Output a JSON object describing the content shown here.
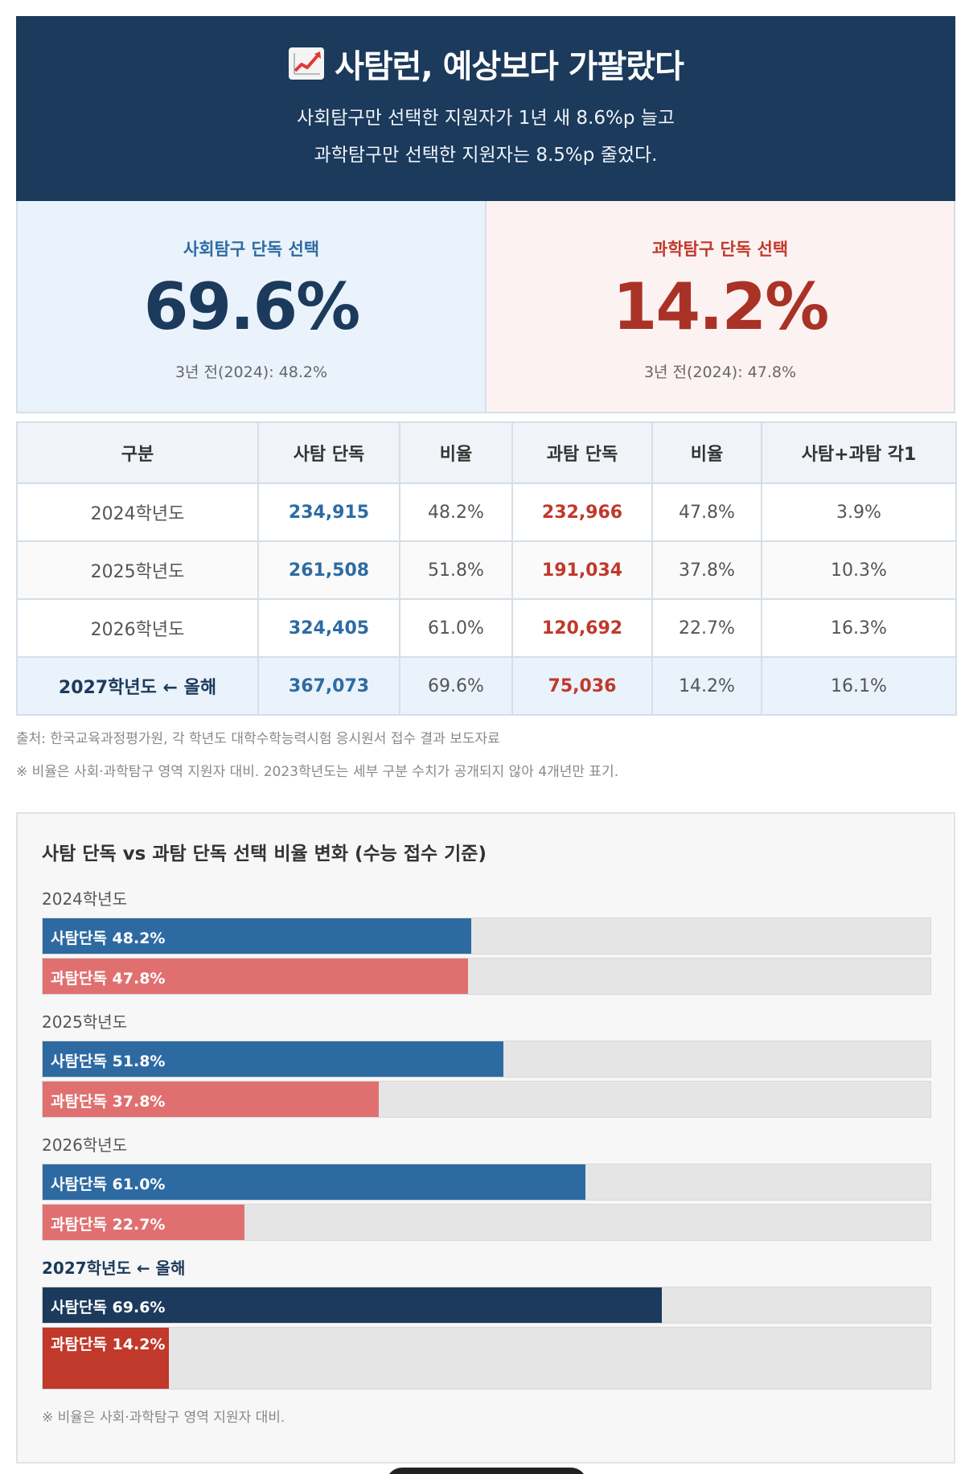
{
  "header": {
    "title": "사탐런, 예상보다 가팔랐다",
    "subtitle_line1": "사회탐구만 선택한 지원자가 1년 새 8.6%p 늘고",
    "subtitle_line2": "과학탐구만 선택한 지원자는 8.5%p 줄었다."
  },
  "cards": {
    "social": {
      "label": "사회탐구 단독 선택",
      "value": "69.6%",
      "prev": "3년 전(2024): 48.2%"
    },
    "science": {
      "label": "과학탐구 단독 선택",
      "value": "14.2%",
      "prev": "3년 전(2024): 47.8%"
    }
  },
  "table": {
    "headers": [
      "구분",
      "사탐 단독",
      "비율",
      "과탐 단독",
      "비율",
      "사탐+과탐 각1"
    ],
    "rows": [
      [
        "2024학년도",
        "234,915",
        "48.2%",
        "232,966",
        "47.8%",
        "3.9%"
      ],
      [
        "2025학년도",
        "261,508",
        "51.8%",
        "191,034",
        "37.8%",
        "10.3%"
      ],
      [
        "2026학년도",
        "324,405",
        "61.0%",
        "120,692",
        "22.7%",
        "16.3%"
      ],
      [
        "2027학년도 ← 올해",
        "367,073",
        "69.6%",
        "75,036",
        "14.2%",
        "16.1%"
      ]
    ]
  },
  "notes": {
    "source": "출처: 한국교육과정평가원, 각 학년도 대학수학능력시험 응시원서 접수 결과 보도자료",
    "remark": "※ 비율은 사회·과학탐구 영역 지원자 대비. 2023학년도는 세부 구분 수치가 공개되지 않아 4개년만 표기."
  },
  "chart_data": {
    "type": "bar",
    "title": "사탐 단독 vs 과탐 단독 선택 비율 변화 (수능 접수 기준)",
    "categories": [
      "2024학년도",
      "2025학년도",
      "2026학년도",
      "2027학년도 ← 올해"
    ],
    "series": [
      {
        "name": "사탐단독",
        "values": [
          48.2,
          51.8,
          61.0,
          69.6
        ],
        "labels": [
          "사탐단독 48.2%",
          "사탐단독 51.8%",
          "사탐단독 61.0%",
          "사탐단독 69.6%"
        ]
      },
      {
        "name": "과탐단독",
        "values": [
          47.8,
          37.8,
          22.7,
          14.2
        ],
        "labels": [
          "과탐단독 47.8%",
          "과탐단독 37.8%",
          "과탐단독 22.7%",
          "과탐단독 14.2%"
        ]
      }
    ],
    "xlim": [
      0,
      100
    ],
    "orientation": "horizontal",
    "footnote": "※ 비율은 사회·과학탐구 영역 지원자 대비."
  },
  "colors": {
    "navy": "#1b3a5c",
    "social_blue": "#2e6aa2",
    "science_red": "#c0392b",
    "science_light": "#e07070"
  }
}
